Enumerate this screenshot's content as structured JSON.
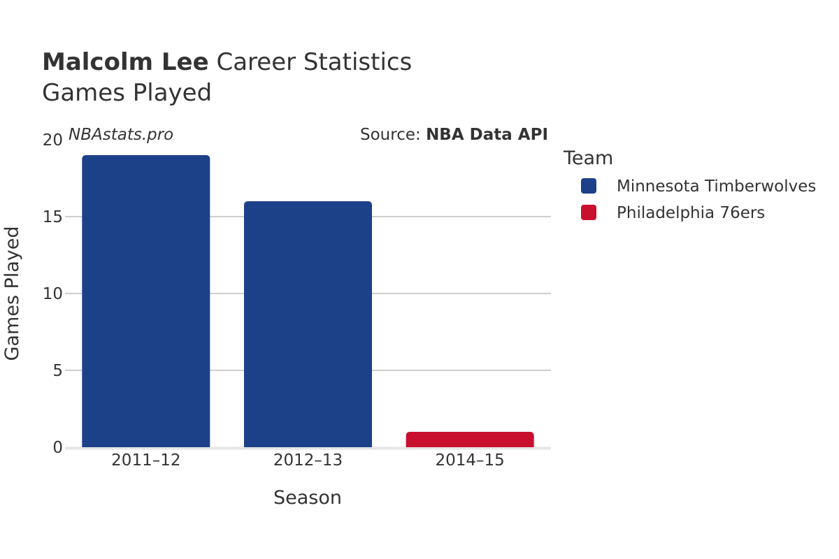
{
  "header": {
    "title_bold": "Malcolm Lee",
    "title_rest": " Career Statistics",
    "subtitle": "Games Played"
  },
  "watermark": "NBAstats.pro",
  "source": {
    "prefix": "Source: ",
    "name": "NBA Data API"
  },
  "legend": {
    "title": "Team",
    "items": [
      {
        "label": "Minnesota Timberwolves",
        "color": "#1d4189"
      },
      {
        "label": "Philadelphia 76ers",
        "color": "#c8102e"
      }
    ]
  },
  "chart_data": {
    "type": "bar",
    "categories": [
      "2011–12",
      "2012–13",
      "2014–15"
    ],
    "values": [
      19,
      16,
      1
    ],
    "colors": [
      "#1d4189",
      "#1d4189",
      "#c8102e"
    ],
    "teams": [
      "Minnesota Timberwolves",
      "Minnesota Timberwolves",
      "Philadelphia 76ers"
    ],
    "xlabel": "Season",
    "ylabel": "Games Played",
    "ylim": [
      0,
      20
    ],
    "yticks": [
      0,
      5,
      10,
      15,
      20
    ],
    "grid": true,
    "legend_position": "right"
  }
}
